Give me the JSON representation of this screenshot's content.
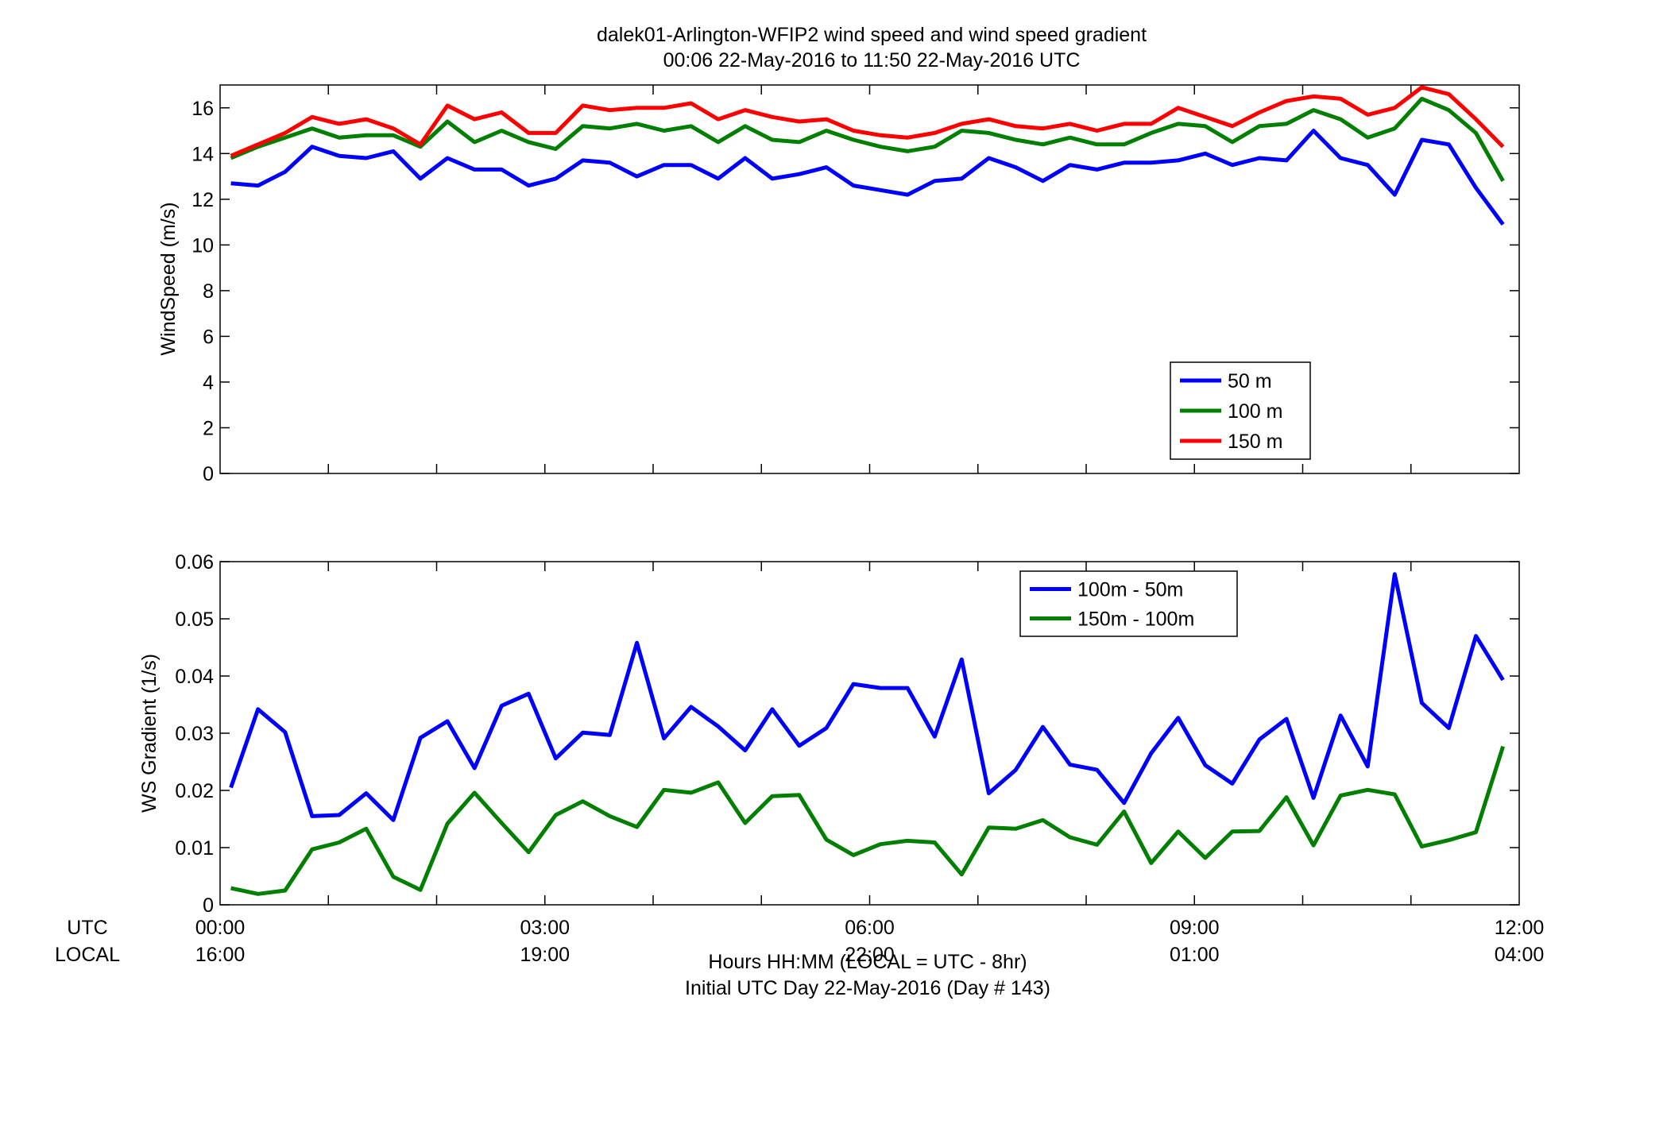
{
  "title_line1": "dalek01-Arlington-WFIP2  wind speed and wind speed gradient",
  "title_line2": "00:06 22-May-2016 to 11:50 22-May-2016  UTC",
  "row_labels": {
    "utc": "UTC",
    "local": "LOCAL"
  },
  "xlabel_line1": "Hours HH:MM  (LOCAL = UTC - 8hr)",
  "xlabel_line2": "Initial UTC Day 22-May-2016 (Day # 143)",
  "colors": {
    "blue": "#0000ff",
    "green": "#007f00",
    "red": "#ff0000"
  },
  "chart_data": [
    {
      "type": "line",
      "ylabel": "WindSpeed (m/s)",
      "xlim": [
        0,
        12
      ],
      "ylim": [
        0,
        17
      ],
      "yticks": [
        0,
        2,
        4,
        6,
        8,
        10,
        12,
        14,
        16
      ],
      "xticks_utc": [
        "00:00",
        "03:00",
        "06:00",
        "09:00",
        "12:00"
      ],
      "legend_position": "lower-right",
      "x": [
        0.1,
        0.35,
        0.6,
        0.85,
        1.1,
        1.35,
        1.6,
        1.85,
        2.1,
        2.35,
        2.6,
        2.85,
        3.1,
        3.35,
        3.6,
        3.85,
        4.1,
        4.35,
        4.6,
        4.85,
        5.1,
        5.35,
        5.6,
        5.85,
        6.1,
        6.35,
        6.6,
        6.85,
        7.1,
        7.35,
        7.6,
        7.85,
        8.1,
        8.35,
        8.6,
        8.85,
        9.1,
        9.35,
        9.6,
        9.85,
        10.1,
        10.35,
        10.6,
        10.85,
        11.1,
        11.35,
        11.6,
        11.85
      ],
      "series": [
        {
          "name": "50 m",
          "color": "blue",
          "values": [
            12.7,
            12.6,
            13.2,
            14.3,
            13.9,
            13.8,
            14.1,
            12.9,
            13.8,
            13.3,
            13.3,
            12.6,
            12.9,
            13.7,
            13.6,
            13.0,
            13.5,
            13.5,
            12.9,
            13.8,
            12.9,
            13.1,
            13.4,
            12.6,
            12.4,
            12.2,
            12.8,
            12.9,
            13.8,
            13.4,
            12.8,
            13.5,
            13.3,
            13.6,
            13.6,
            13.7,
            14.0,
            13.5,
            13.8,
            13.7,
            15.0,
            13.8,
            13.5,
            12.2,
            14.6,
            14.4,
            12.5,
            10.9
          ]
        },
        {
          "name": "100 m",
          "color": "green",
          "values": [
            13.8,
            14.3,
            14.7,
            15.1,
            14.7,
            14.8,
            14.8,
            14.3,
            15.4,
            14.5,
            15.0,
            14.5,
            14.2,
            15.2,
            15.1,
            15.3,
            15.0,
            15.2,
            14.5,
            15.2,
            14.6,
            14.5,
            15.0,
            14.6,
            14.3,
            14.1,
            14.3,
            15.0,
            14.9,
            14.6,
            14.4,
            14.7,
            14.4,
            14.4,
            14.9,
            15.3,
            15.2,
            14.5,
            15.2,
            15.3,
            15.9,
            15.5,
            14.7,
            15.1,
            16.4,
            15.9,
            14.9,
            12.8
          ]
        },
        {
          "name": "150 m",
          "color": "red",
          "values": [
            13.9,
            14.4,
            14.9,
            15.6,
            15.3,
            15.5,
            15.1,
            14.4,
            16.1,
            15.5,
            15.8,
            14.9,
            14.9,
            16.1,
            15.9,
            16.0,
            16.0,
            16.2,
            15.5,
            15.9,
            15.6,
            15.4,
            15.5,
            15.0,
            14.8,
            14.7,
            14.9,
            15.3,
            15.5,
            15.2,
            15.1,
            15.3,
            15.0,
            15.3,
            15.3,
            16.0,
            15.6,
            15.2,
            15.8,
            16.3,
            16.5,
            16.4,
            15.7,
            16.0,
            16.9,
            16.6,
            15.5,
            14.3
          ]
        }
      ]
    },
    {
      "type": "line",
      "ylabel": "WS Gradient (1/s)",
      "xlim": [
        0,
        12
      ],
      "ylim": [
        0,
        0.06
      ],
      "yticks": [
        0,
        0.01,
        0.02,
        0.03,
        0.04,
        0.05,
        0.06
      ],
      "ytick_labels": [
        "0",
        "0.01",
        "0.02",
        "0.03",
        "0.04",
        "0.05",
        "0.06"
      ],
      "xticks_utc": [
        "00:00",
        "03:00",
        "06:00",
        "09:00",
        "12:00"
      ],
      "xticks_local": [
        "16:00",
        "19:00",
        "22:00",
        "01:00",
        "04:00"
      ],
      "legend_position": "top-right",
      "x": [
        0.1,
        0.35,
        0.6,
        0.85,
        1.1,
        1.35,
        1.6,
        1.85,
        2.1,
        2.35,
        2.6,
        2.85,
        3.1,
        3.35,
        3.6,
        3.85,
        4.1,
        4.35,
        4.6,
        4.85,
        5.1,
        5.35,
        5.6,
        5.85,
        6.1,
        6.35,
        6.6,
        6.85,
        7.1,
        7.35,
        7.6,
        7.85,
        8.1,
        8.35,
        8.6,
        8.85,
        9.1,
        9.35,
        9.6,
        9.85,
        10.1,
        10.35,
        10.6,
        10.85,
        11.1,
        11.35,
        11.6,
        11.85
      ],
      "series": [
        {
          "name": "100m - 50m",
          "color": "blue",
          "values": [
            0.0205,
            0.0342,
            0.0302,
            0.0155,
            0.0157,
            0.0195,
            0.0148,
            0.0292,
            0.0321,
            0.0239,
            0.0348,
            0.0369,
            0.0256,
            0.0301,
            0.0297,
            0.0458,
            0.0291,
            0.0346,
            0.0312,
            0.027,
            0.0342,
            0.0278,
            0.0309,
            0.0386,
            0.0379,
            0.0379,
            0.0294,
            0.0429,
            0.0195,
            0.0236,
            0.0311,
            0.0245,
            0.0236,
            0.0178,
            0.0265,
            0.0327,
            0.0244,
            0.0212,
            0.0289,
            0.0325,
            0.0187,
            0.0331,
            0.0242,
            0.0578,
            0.0353,
            0.0309,
            0.047,
            0.0393
          ]
        },
        {
          "name": "150m - 100m",
          "color": "green",
          "values": [
            0.0029,
            0.0019,
            0.0025,
            0.0097,
            0.0109,
            0.0133,
            0.0049,
            0.0026,
            0.0142,
            0.0196,
            0.0143,
            0.0092,
            0.0157,
            0.0181,
            0.0155,
            0.0136,
            0.0201,
            0.0196,
            0.0214,
            0.0143,
            0.019,
            0.0192,
            0.0114,
            0.0087,
            0.0106,
            0.0112,
            0.0109,
            0.0053,
            0.0135,
            0.0133,
            0.0148,
            0.0118,
            0.0105,
            0.0163,
            0.0073,
            0.0128,
            0.0082,
            0.0128,
            0.0129,
            0.0188,
            0.0104,
            0.0191,
            0.0201,
            0.0193,
            0.0102,
            0.0113,
            0.0127,
            0.0277
          ]
        }
      ]
    }
  ]
}
